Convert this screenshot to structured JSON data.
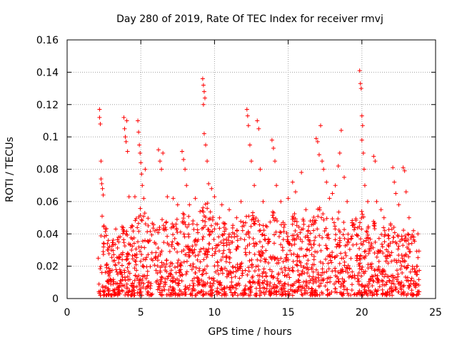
{
  "chart_data": {
    "type": "scatter",
    "title": "Day 280 of 2019, Rate Of TEC Index for receiver rmvj",
    "xlabel": "GPS time / hours",
    "ylabel": "ROTI / TECUs",
    "xlim": [
      0,
      25
    ],
    "ylim": [
      0,
      0.16
    ],
    "x_ticks": [
      0,
      5,
      10,
      15,
      20,
      25
    ],
    "x_tick_labels": [
      "0",
      "5",
      "10",
      "15",
      "20",
      "25"
    ],
    "y_ticks": [
      0,
      0.02,
      0.04,
      0.06,
      0.08,
      0.1,
      0.12,
      0.14,
      0.16
    ],
    "y_tick_labels": [
      "0",
      "0.02",
      "0.04",
      "0.06",
      "0.08",
      "0.1",
      "0.12",
      "0.14",
      "0.16"
    ],
    "grid": true,
    "marker": "+",
    "color": "#ff0000",
    "x_range_of_data": [
      2.1,
      23.9
    ],
    "series": [
      {
        "name": "ROTI",
        "points": [
          [
            2.2,
            0.117
          ],
          [
            2.2,
            0.112
          ],
          [
            2.25,
            0.108
          ],
          [
            2.3,
            0.085
          ],
          [
            2.3,
            0.074
          ],
          [
            2.35,
            0.071
          ],
          [
            2.4,
            0.068
          ],
          [
            2.45,
            0.064
          ],
          [
            2.5,
            0.045
          ],
          [
            2.6,
            0.043
          ],
          [
            2.8,
            0.036
          ],
          [
            3.0,
            0.03
          ],
          [
            3.3,
            0.043
          ],
          [
            3.5,
            0.035
          ],
          [
            3.85,
            0.112
          ],
          [
            3.9,
            0.105
          ],
          [
            3.95,
            0.1
          ],
          [
            4.0,
            0.097
          ],
          [
            4.05,
            0.11
          ],
          [
            4.1,
            0.091
          ],
          [
            4.2,
            0.063
          ],
          [
            4.6,
            0.063
          ],
          [
            4.8,
            0.11
          ],
          [
            4.85,
            0.103
          ],
          [
            4.9,
            0.095
          ],
          [
            4.95,
            0.09
          ],
          [
            5.0,
            0.084
          ],
          [
            5.05,
            0.077
          ],
          [
            5.1,
            0.07
          ],
          [
            5.2,
            0.062
          ],
          [
            5.3,
            0.08
          ],
          [
            5.5,
            0.045
          ],
          [
            6.2,
            0.092
          ],
          [
            6.3,
            0.085
          ],
          [
            6.4,
            0.08
          ],
          [
            6.5,
            0.09
          ],
          [
            6.8,
            0.063
          ],
          [
            7.2,
            0.062
          ],
          [
            7.5,
            0.058
          ],
          [
            7.8,
            0.091
          ],
          [
            7.9,
            0.086
          ],
          [
            8.0,
            0.08
          ],
          [
            8.1,
            0.07
          ],
          [
            8.3,
            0.058
          ],
          [
            8.7,
            0.062
          ],
          [
            9.2,
            0.136
          ],
          [
            9.25,
            0.132
          ],
          [
            9.3,
            0.128
          ],
          [
            9.35,
            0.124
          ],
          [
            9.25,
            0.12
          ],
          [
            9.3,
            0.102
          ],
          [
            9.4,
            0.095
          ],
          [
            9.5,
            0.085
          ],
          [
            9.6,
            0.071
          ],
          [
            9.8,
            0.068
          ],
          [
            10.0,
            0.063
          ],
          [
            10.5,
            0.058
          ],
          [
            11.0,
            0.055
          ],
          [
            11.5,
            0.05
          ],
          [
            11.8,
            0.06
          ],
          [
            12.2,
            0.117
          ],
          [
            12.25,
            0.113
          ],
          [
            12.3,
            0.107
          ],
          [
            12.4,
            0.095
          ],
          [
            12.5,
            0.085
          ],
          [
            12.7,
            0.07
          ],
          [
            12.9,
            0.11
          ],
          [
            13.0,
            0.105
          ],
          [
            13.1,
            0.08
          ],
          [
            13.3,
            0.06
          ],
          [
            13.9,
            0.098
          ],
          [
            14.0,
            0.093
          ],
          [
            14.1,
            0.085
          ],
          [
            14.2,
            0.07
          ],
          [
            14.5,
            0.06
          ],
          [
            15.0,
            0.062
          ],
          [
            15.3,
            0.072
          ],
          [
            15.5,
            0.066
          ],
          [
            15.9,
            0.078
          ],
          [
            16.2,
            0.055
          ],
          [
            16.5,
            0.048
          ],
          [
            16.9,
            0.099
          ],
          [
            17.0,
            0.097
          ],
          [
            17.1,
            0.089
          ],
          [
            17.2,
            0.107
          ],
          [
            17.3,
            0.085
          ],
          [
            17.4,
            0.08
          ],
          [
            17.6,
            0.072
          ],
          [
            17.8,
            0.062
          ],
          [
            18.0,
            0.065
          ],
          [
            18.2,
            0.07
          ],
          [
            18.4,
            0.082
          ],
          [
            18.5,
            0.09
          ],
          [
            18.6,
            0.104
          ],
          [
            18.8,
            0.075
          ],
          [
            19.0,
            0.06
          ],
          [
            19.85,
            0.141
          ],
          [
            19.9,
            0.133
          ],
          [
            19.95,
            0.13
          ],
          [
            20.0,
            0.113
          ],
          [
            20.05,
            0.107
          ],
          [
            20.0,
            0.098
          ],
          [
            20.1,
            0.09
          ],
          [
            20.15,
            0.08
          ],
          [
            20.2,
            0.07
          ],
          [
            20.4,
            0.06
          ],
          [
            20.8,
            0.088
          ],
          [
            20.9,
            0.085
          ],
          [
            21.0,
            0.06
          ],
          [
            21.3,
            0.055
          ],
          [
            21.5,
            0.05
          ],
          [
            22.1,
            0.081
          ],
          [
            22.2,
            0.072
          ],
          [
            22.3,
            0.065
          ],
          [
            22.5,
            0.058
          ],
          [
            22.8,
            0.081
          ],
          [
            22.9,
            0.079
          ],
          [
            23.0,
            0.066
          ],
          [
            23.2,
            0.05
          ],
          [
            23.5,
            0.042
          ],
          [
            23.8,
            0.04
          ]
        ],
        "dense_band": {
          "x_start": 2.1,
          "x_end": 23.9,
          "y_floor": 0.002,
          "y_typical_max": 0.045,
          "envelope": [
            [
              2.1,
              0.055
            ],
            [
              2.5,
              0.05
            ],
            [
              3.0,
              0.035
            ],
            [
              3.5,
              0.04
            ],
            [
              4.0,
              0.05
            ],
            [
              4.5,
              0.045
            ],
            [
              5.0,
              0.06
            ],
            [
              5.5,
              0.05
            ],
            [
              6.0,
              0.045
            ],
            [
              6.5,
              0.05
            ],
            [
              7.0,
              0.045
            ],
            [
              7.5,
              0.05
            ],
            [
              8.0,
              0.055
            ],
            [
              8.5,
              0.05
            ],
            [
              9.0,
              0.055
            ],
            [
              9.5,
              0.06
            ],
            [
              10.0,
              0.05
            ],
            [
              10.5,
              0.05
            ],
            [
              11.0,
              0.048
            ],
            [
              11.5,
              0.045
            ],
            [
              12.0,
              0.05
            ],
            [
              12.5,
              0.055
            ],
            [
              13.0,
              0.05
            ],
            [
              13.5,
              0.045
            ],
            [
              14.0,
              0.055
            ],
            [
              14.5,
              0.05
            ],
            [
              15.0,
              0.045
            ],
            [
              15.5,
              0.055
            ],
            [
              16.0,
              0.05
            ],
            [
              16.5,
              0.045
            ],
            [
              17.0,
              0.06
            ],
            [
              17.5,
              0.05
            ],
            [
              18.0,
              0.05
            ],
            [
              18.5,
              0.055
            ],
            [
              19.0,
              0.045
            ],
            [
              19.5,
              0.05
            ],
            [
              20.0,
              0.055
            ],
            [
              20.5,
              0.045
            ],
            [
              21.0,
              0.05
            ],
            [
              21.5,
              0.045
            ],
            [
              22.0,
              0.05
            ],
            [
              22.5,
              0.04
            ],
            [
              23.0,
              0.045
            ],
            [
              23.5,
              0.04
            ],
            [
              23.9,
              0.035
            ]
          ],
          "point_count": 1800
        }
      }
    ]
  }
}
